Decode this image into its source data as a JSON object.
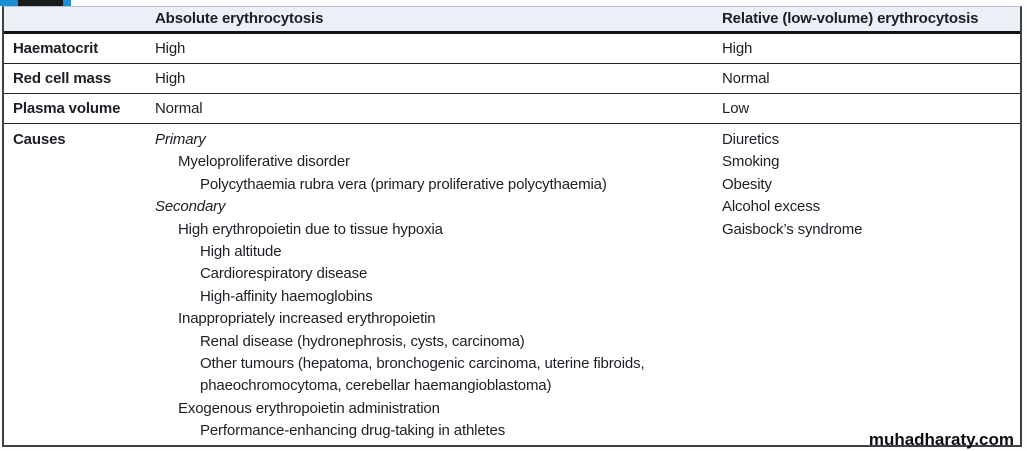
{
  "colors": {
    "accent_blue": "#1b8ed8",
    "tab_dark": "#17191d",
    "header_bg": "#ecf0f6",
    "border_dark": "#3f3f46",
    "text": "#1e1e26"
  },
  "table": {
    "columns": [
      {
        "label": ""
      },
      {
        "label": "Absolute erythrocytosis"
      },
      {
        "label": "Relative (low-volume) erythrocytosis"
      }
    ],
    "rows": [
      {
        "label": "Haematocrit",
        "absolute": "High",
        "relative": "High"
      },
      {
        "label": "Red cell mass",
        "absolute": "High",
        "relative": "Normal"
      },
      {
        "label": "Plasma volume",
        "absolute": "Normal",
        "relative": "Low"
      },
      {
        "label": "Causes"
      }
    ],
    "causes": {
      "absolute": [
        {
          "text": "Primary",
          "indent": 0,
          "italic": true
        },
        {
          "text": "Myeloproliferative disorder",
          "indent": 1
        },
        {
          "text": "Polycythaemia rubra vera (primary proliferative polycythaemia)",
          "indent": 2
        },
        {
          "text": "Secondary",
          "indent": 0,
          "italic": true
        },
        {
          "text": "High erythropoietin due to tissue hypoxia",
          "indent": 1
        },
        {
          "text": "High altitude",
          "indent": 2
        },
        {
          "text": "Cardiorespiratory disease",
          "indent": 2
        },
        {
          "text": "High-affinity haemoglobins",
          "indent": 2
        },
        {
          "text": "Inappropriately increased erythropoietin",
          "indent": 1
        },
        {
          "text": "Renal disease (hydronephrosis, cysts, carcinoma)",
          "indent": 2
        },
        {
          "text": "Other tumours (hepatoma, bronchogenic carcinoma, uterine fibroids, phaeochromocytoma, cerebellar haemangioblastoma)",
          "indent": 2
        },
        {
          "text": "Exogenous erythropoietin administration",
          "indent": 1
        },
        {
          "text": "Performance-enhancing drug-taking in athletes",
          "indent": 2
        }
      ],
      "relative": [
        "Diuretics",
        "Smoking",
        "Obesity",
        "Alcohol excess",
        "Gaisbock’s syndrome"
      ]
    }
  },
  "watermark": "muhadharaty.com"
}
